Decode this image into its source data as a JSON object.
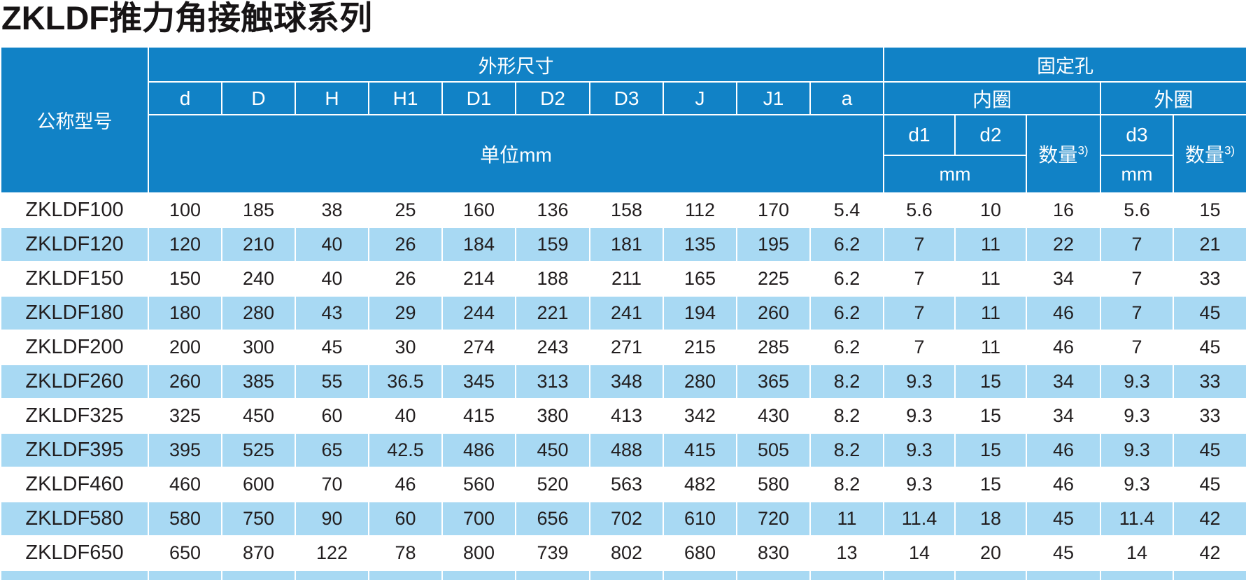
{
  "page_title": "ZKLDF推力角接触球系列",
  "table": {
    "header": {
      "model_col": "公称型号",
      "dims_group": "外形尺寸",
      "holes_group": "固定孔",
      "dim_cols": [
        "d",
        "D",
        "H",
        "H1",
        "D1",
        "D2",
        "D3",
        "J",
        "J1",
        "a"
      ],
      "dims_unit": "单位mm",
      "inner_ring": "内圈",
      "outer_ring": "外圈",
      "col_d1": "d1",
      "col_d2": "d2",
      "col_d3": "d3",
      "qty_label": "数量",
      "qty_sup": "3)",
      "mm_unit": "mm"
    },
    "rows": [
      {
        "model": "ZKLDF100",
        "dims": [
          "100",
          "185",
          "38",
          "25",
          "160",
          "136",
          "158",
          "112",
          "170",
          "5.4"
        ],
        "holes": [
          "5.6",
          "10",
          "16",
          "5.6",
          "15"
        ]
      },
      {
        "model": "ZKLDF120",
        "dims": [
          "120",
          "210",
          "40",
          "26",
          "184",
          "159",
          "181",
          "135",
          "195",
          "6.2"
        ],
        "holes": [
          "7",
          "11",
          "22",
          "7",
          "21"
        ]
      },
      {
        "model": "ZKLDF150",
        "dims": [
          "150",
          "240",
          "40",
          "26",
          "214",
          "188",
          "211",
          "165",
          "225",
          "6.2"
        ],
        "holes": [
          "7",
          "11",
          "34",
          "7",
          "33"
        ]
      },
      {
        "model": "ZKLDF180",
        "dims": [
          "180",
          "280",
          "43",
          "29",
          "244",
          "221",
          "241",
          "194",
          "260",
          "6.2"
        ],
        "holes": [
          "7",
          "11",
          "46",
          "7",
          "45"
        ]
      },
      {
        "model": "ZKLDF200",
        "dims": [
          "200",
          "300",
          "45",
          "30",
          "274",
          "243",
          "271",
          "215",
          "285",
          "6.2"
        ],
        "holes": [
          "7",
          "11",
          "46",
          "7",
          "45"
        ]
      },
      {
        "model": "ZKLDF260",
        "dims": [
          "260",
          "385",
          "55",
          "36.5",
          "345",
          "313",
          "348",
          "280",
          "365",
          "8.2"
        ],
        "holes": [
          "9.3",
          "15",
          "34",
          "9.3",
          "33"
        ]
      },
      {
        "model": "ZKLDF325",
        "dims": [
          "325",
          "450",
          "60",
          "40",
          "415",
          "380",
          "413",
          "342",
          "430",
          "8.2"
        ],
        "holes": [
          "9.3",
          "15",
          "34",
          "9.3",
          "33"
        ]
      },
      {
        "model": "ZKLDF395",
        "dims": [
          "395",
          "525",
          "65",
          "42.5",
          "486",
          "450",
          "488",
          "415",
          "505",
          "8.2"
        ],
        "holes": [
          "9.3",
          "15",
          "46",
          "9.3",
          "45"
        ]
      },
      {
        "model": "ZKLDF460",
        "dims": [
          "460",
          "600",
          "70",
          "46",
          "560",
          "520",
          "563",
          "482",
          "580",
          "8.2"
        ],
        "holes": [
          "9.3",
          "15",
          "46",
          "9.3",
          "45"
        ]
      },
      {
        "model": "ZKLDF580",
        "dims": [
          "580",
          "750",
          "90",
          "60",
          "700",
          "656",
          "702",
          "610",
          "720",
          "11"
        ],
        "holes": [
          "11.4",
          "18",
          "45",
          "11.4",
          "42"
        ]
      },
      {
        "model": "ZKLDF650",
        "dims": [
          "650",
          "870",
          "122",
          "78",
          "800",
          "739",
          "802",
          "680",
          "830",
          "13"
        ],
        "holes": [
          "14",
          "20",
          "45",
          "14",
          "42"
        ]
      }
    ]
  }
}
